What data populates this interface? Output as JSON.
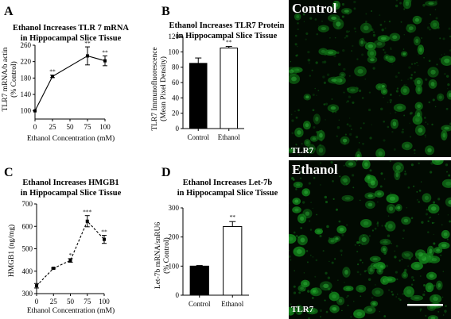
{
  "chart_data": [
    {
      "panel_letter": "A",
      "type": "line",
      "title_lines": [
        "Ethanol Increases TLR 7 mRNA",
        "in Hippocampal Slice Tissue"
      ],
      "ylabel_lines": [
        "TLR7 mRNA/b actin",
        "(% Control)"
      ],
      "xlabel": "Ethanol Concentration (mM)",
      "xlim": [
        0,
        100
      ],
      "ylim": [
        80,
        260
      ],
      "xticks": [
        "0",
        "25",
        "50",
        "75",
        "100"
      ],
      "yticks": [
        "100",
        "140",
        "180",
        "220",
        "260"
      ],
      "series": [
        {
          "line_style": "solid",
          "x": [
            0,
            25,
            75,
            100
          ],
          "y": [
            100,
            184,
            234,
            222
          ],
          "err": [
            0,
            3,
            22,
            12
          ],
          "marks": [
            "",
            "**",
            "**",
            "**"
          ]
        }
      ]
    },
    {
      "panel_letter": "B",
      "type": "bar",
      "title_lines": [
        "Ethanol Increases TLR7 Protein",
        "in Hippocampal Slice Tissue"
      ],
      "ylabel_lines": [
        "TLR7 Immunofluorescence",
        "(Mean Pixel Density)"
      ],
      "categories": [
        "Control",
        "Ethanol"
      ],
      "values": [
        85,
        105
      ],
      "err": [
        7,
        2
      ],
      "marks": [
        "",
        "**"
      ],
      "bar_fill": [
        "#000000",
        "#ffffff"
      ],
      "ylim": [
        0,
        120
      ],
      "yticks": [
        "0",
        "20",
        "40",
        "60",
        "80",
        "100",
        "120"
      ]
    },
    {
      "panel_letter": "C",
      "type": "line",
      "title_lines": [
        "Ethanol Increases HMGB1",
        "in Hippocampal Slice Tissue"
      ],
      "ylabel_lines": [
        "HMGB1 (ng/mg)"
      ],
      "xlabel": "Ethanol Concentration (mM)",
      "xlim": [
        0,
        100
      ],
      "ylim": [
        300,
        700
      ],
      "xticks": [
        "0",
        "25",
        "50",
        "75",
        "100"
      ],
      "yticks": [
        "300",
        "400",
        "500",
        "600",
        "700"
      ],
      "series": [
        {
          "line_style": "dashed",
          "x": [
            0,
            25,
            50,
            75,
            100
          ],
          "y": [
            335,
            413,
            448,
            623,
            542
          ],
          "err": [
            10,
            3,
            8,
            25,
            18
          ],
          "marks": [
            "",
            "",
            "*",
            "***",
            "**"
          ]
        }
      ]
    },
    {
      "panel_letter": "D",
      "type": "bar",
      "title_lines": [
        "Ethanol Increases Let-7b",
        "in Hippocampal Slice Tissue"
      ],
      "ylabel_lines": [
        "Let-7b mRNA/snRU6",
        "(% Control)"
      ],
      "categories": [
        "Control",
        "Ethanol"
      ],
      "values": [
        100,
        236
      ],
      "err": [
        2,
        17
      ],
      "marks": [
        "",
        "**"
      ],
      "bar_fill": [
        "#000000",
        "#ffffff"
      ],
      "ylim": [
        0,
        300
      ],
      "yticks": [
        "0",
        "100",
        "200",
        "300"
      ]
    }
  ],
  "micrographs": [
    {
      "title": "Control",
      "stain_label": "TLR7",
      "tone": "#0f6a14"
    },
    {
      "title": "Ethanol",
      "stain_label": "TLR7",
      "tone": "#12801a"
    }
  ]
}
